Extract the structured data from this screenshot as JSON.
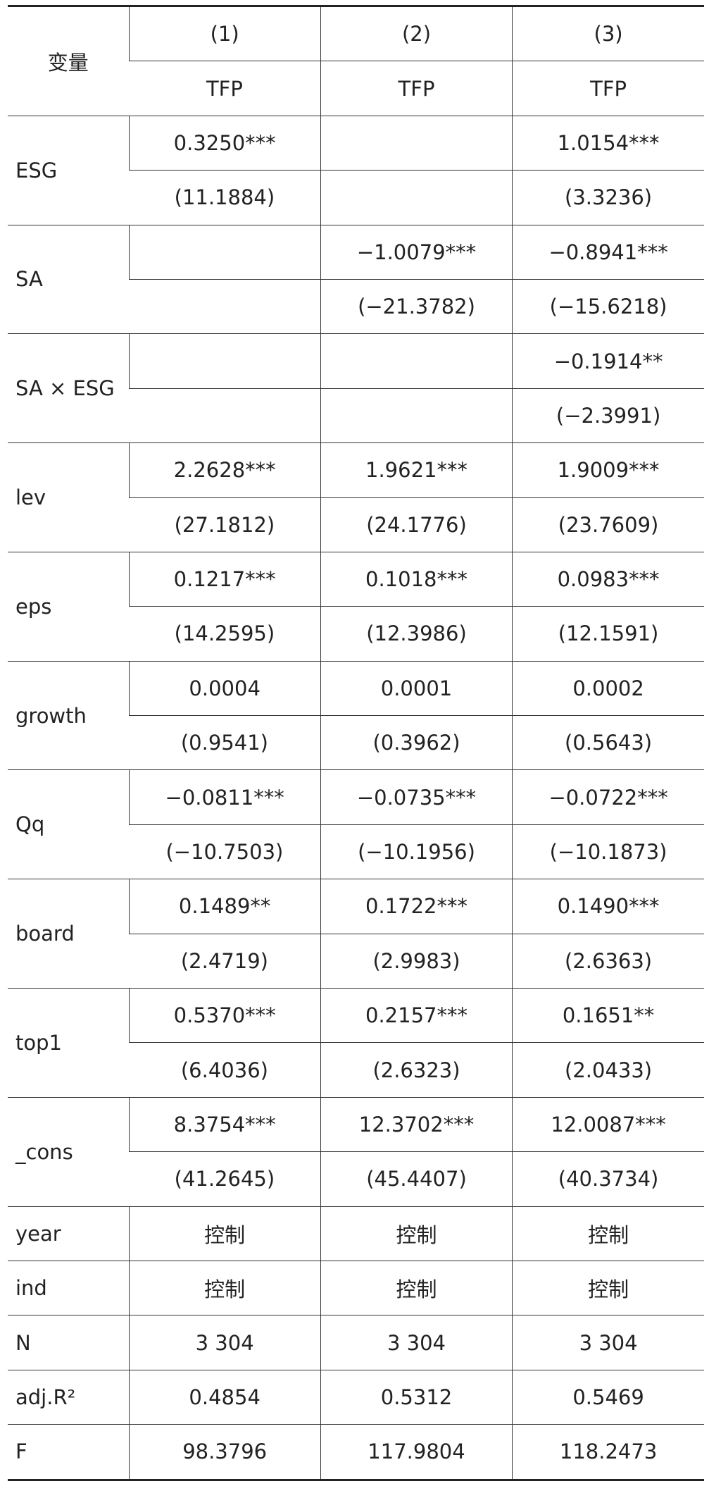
{
  "table": {
    "corner": "变量",
    "columns": [
      "(1)",
      "(2)",
      "(3)"
    ],
    "depvars": [
      "TFP",
      "TFP",
      "TFP"
    ],
    "rows": [
      {
        "name": "ESG",
        "coef": [
          "0.3250***",
          null,
          "1.0154***"
        ],
        "t": [
          "(11.1884)",
          null,
          "(3.3236)"
        ]
      },
      {
        "name": "SA",
        "coef": [
          null,
          "−1.0079***",
          "−0.8941***"
        ],
        "t": [
          null,
          "(−21.3782)",
          "(−15.6218)"
        ]
      },
      {
        "name": "SA × ESG",
        "coef": [
          null,
          null,
          "−0.1914**"
        ],
        "t": [
          null,
          null,
          "(−2.3991)"
        ]
      },
      {
        "name": "lev",
        "coef": [
          "2.2628***",
          "1.9621***",
          "1.9009***"
        ],
        "t": [
          "(27.1812)",
          "(24.1776)",
          "(23.7609)"
        ]
      },
      {
        "name": "eps",
        "coef": [
          "0.1217***",
          "0.1018***",
          "0.0983***"
        ],
        "t": [
          "(14.2595)",
          "(12.3986)",
          "(12.1591)"
        ]
      },
      {
        "name": "growth",
        "coef": [
          "0.0004",
          "0.0001",
          "0.0002"
        ],
        "t": [
          "(0.9541)",
          "(0.3962)",
          "(0.5643)"
        ]
      },
      {
        "name": "Qq",
        "coef": [
          "−0.0811***",
          "−0.0735***",
          "−0.0722***"
        ],
        "t": [
          "(−10.7503)",
          "(−10.1956)",
          "(−10.1873)"
        ]
      },
      {
        "name": "board",
        "coef": [
          "0.1489**",
          "0.1722***",
          "0.1490***"
        ],
        "t": [
          "(2.4719)",
          "(2.9983)",
          "(2.6363)"
        ]
      },
      {
        "name": "top1",
        "coef": [
          "0.5370***",
          "0.2157***",
          "0.1651**"
        ],
        "t": [
          "(6.4036)",
          "(2.6323)",
          "(2.0433)"
        ]
      },
      {
        "name": "_cons",
        "coef": [
          "8.3754***",
          "12.3702***",
          "12.0087***"
        ],
        "t": [
          "(41.2645)",
          "(45.4407)",
          "(40.3734)"
        ]
      }
    ],
    "footer": [
      {
        "name": "year",
        "values": [
          "控制",
          "控制",
          "控制"
        ]
      },
      {
        "name": "ind",
        "values": [
          "控制",
          "控制",
          "控制"
        ]
      },
      {
        "name": "N",
        "values": [
          "3 304",
          "3 304",
          "3 304"
        ]
      },
      {
        "name": "adj.R²",
        "values": [
          "0.4854",
          "0.5312",
          "0.5469"
        ]
      },
      {
        "name": "F",
        "values": [
          "98.3796",
          "117.9804",
          "118.2473"
        ]
      }
    ]
  }
}
